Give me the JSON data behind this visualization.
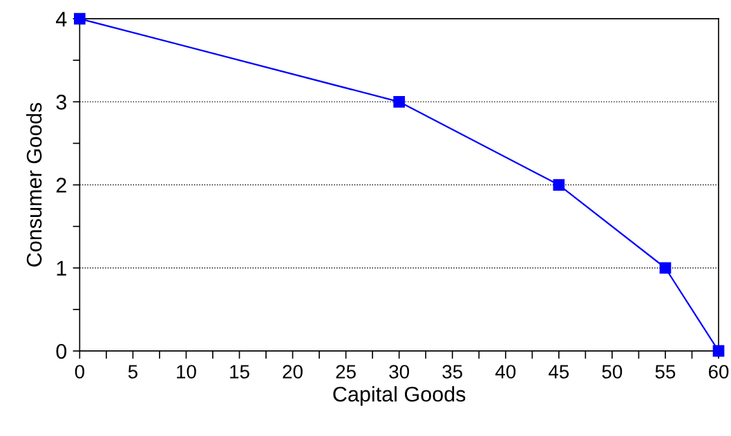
{
  "chart_data": {
    "type": "line",
    "xlabel": "Capital Goods",
    "ylabel": "Consumer Goods",
    "x": [
      0,
      30,
      45,
      55,
      60
    ],
    "series": [
      {
        "color": "#0000ff",
        "values": [
          4,
          3,
          2,
          1,
          0
        ]
      }
    ],
    "xlim": [
      0,
      60
    ],
    "ylim": [
      0,
      4
    ],
    "xticks": [
      0,
      {
        "value": 2.5,
        "label": null
      },
      5,
      {
        "value": 7.5,
        "label": null
      },
      10,
      {
        "value": 12.5,
        "label": null
      },
      15,
      {
        "value": 17.5,
        "label": null
      },
      20,
      {
        "value": 22.5,
        "label": null
      },
      25,
      {
        "value": 27.5,
        "label": null
      },
      30,
      {
        "value": 32.5,
        "label": null
      },
      35,
      {
        "value": 37.5,
        "label": null
      },
      40,
      {
        "value": 42.5,
        "label": null
      },
      45,
      {
        "value": 47.5,
        "label": null
      },
      50,
      {
        "value": 52.5,
        "label": null
      },
      55,
      {
        "value": 57.5,
        "label": null
      },
      60
    ],
    "yticks": [
      0,
      {
        "value": 0.5,
        "label": null
      },
      1,
      {
        "value": 1.5,
        "label": null
      },
      2,
      {
        "value": 2.5,
        "label": null
      },
      3,
      {
        "value": 3.5,
        "label": null
      },
      4
    ],
    "grid": "y",
    "marker": "square",
    "line_style": "solid"
  }
}
